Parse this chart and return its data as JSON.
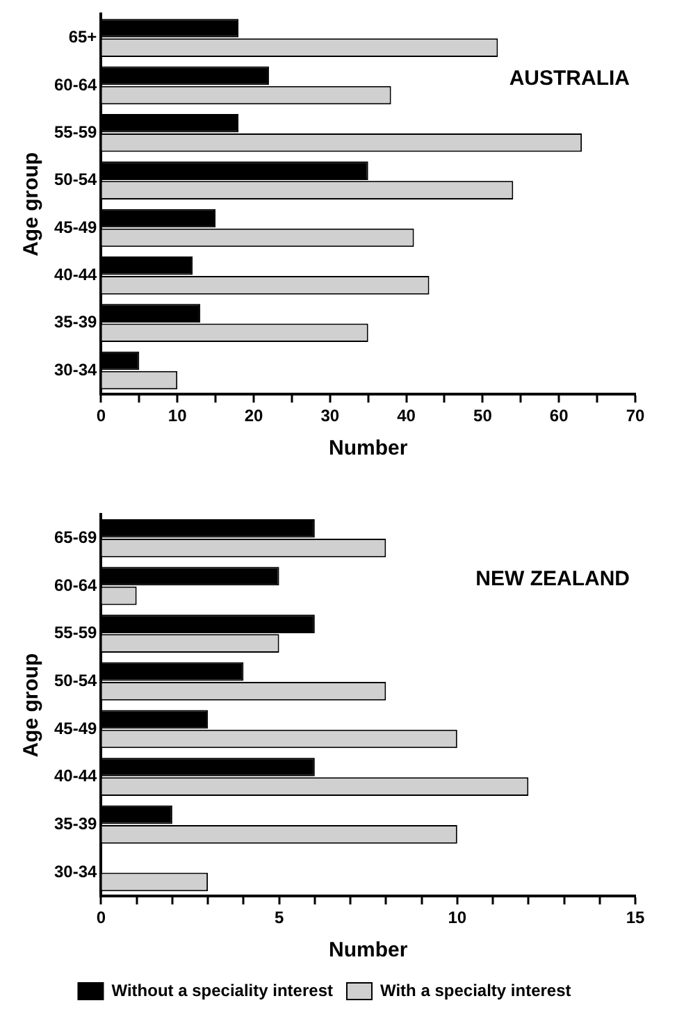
{
  "chart_data": [
    {
      "type": "bar",
      "orientation": "horizontal",
      "title": "AUSTRALIA",
      "xlabel": "Number",
      "ylabel": "Age group",
      "categories": [
        "65+",
        "60-64",
        "55-59",
        "50-54",
        "45-49",
        "40-44",
        "35-39",
        "30-34"
      ],
      "series": [
        {
          "color": "#000000",
          "values": [
            18,
            22,
            18,
            35,
            15,
            12,
            13,
            5
          ]
        },
        {
          "color": "#d0d0d0",
          "values": [
            52,
            38,
            63,
            54,
            41,
            43,
            35,
            10
          ]
        }
      ],
      "xlim": [
        0,
        70
      ],
      "xticks": [
        0,
        {
          "value": 5,
          "label": null
        },
        10,
        {
          "value": 15,
          "label": null
        },
        20,
        {
          "value": 25,
          "label": null
        },
        30,
        {
          "value": 35,
          "label": null
        },
        40,
        {
          "value": 45,
          "label": null
        },
        50,
        {
          "value": 55,
          "label": null
        },
        60,
        {
          "value": 65,
          "label": null
        },
        70
      ],
      "grid": false,
      "legend": false
    },
    {
      "type": "bar",
      "orientation": "horizontal",
      "title": "NEW ZEALAND",
      "xlabel": "Number",
      "ylabel": "Age group",
      "categories": [
        "65-69",
        "60-64",
        "55-59",
        "50-54",
        "45-49",
        "40-44",
        "35-39",
        "30-34"
      ],
      "series": [
        {
          "name": "Without a speciality interest",
          "color": "#000000",
          "values": [
            6,
            5,
            6,
            4,
            3,
            6,
            2,
            0
          ]
        },
        {
          "name": "With a specialty interest",
          "color": "#d0d0d0",
          "values": [
            8,
            1,
            5,
            8,
            10,
            12,
            10,
            3
          ]
        }
      ],
      "xlim": [
        0,
        15
      ],
      "xticks": [
        0,
        {
          "value": 1,
          "label": null
        },
        {
          "value": 2,
          "label": null
        },
        {
          "value": 3,
          "label": null
        },
        {
          "value": 4,
          "label": null
        },
        5,
        {
          "value": 6,
          "label": null
        },
        {
          "value": 7,
          "label": null
        },
        {
          "value": 8,
          "label": null
        },
        {
          "value": 9,
          "label": null
        },
        10,
        {
          "value": 11,
          "label": null
        },
        {
          "value": 12,
          "label": null
        },
        {
          "value": 13,
          "label": null
        },
        {
          "value": 14,
          "label": null
        },
        15
      ],
      "grid": false,
      "legend": "bottom"
    }
  ]
}
